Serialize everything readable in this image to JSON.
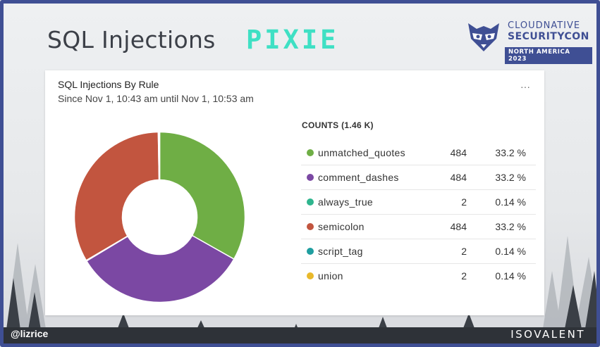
{
  "slide": {
    "title": "SQL Injections",
    "brand": "PIXIE",
    "conference": {
      "line1": "CLOUDNATIVE",
      "line2": "SECURITYCON",
      "line3": "NORTH AMERICA 2023"
    },
    "handle": "@lizrice",
    "footer_brand": "ISOVALENT"
  },
  "panel": {
    "title": "SQL Injections By Rule",
    "subtitle": "Since Nov 1, 10:43 am until Nov 1, 10:53 am",
    "menu_label": "···",
    "counts_title": "COUNTS (1.46 K)"
  },
  "chart_data": {
    "type": "pie",
    "donut": true,
    "title": "SQL Injections By Rule",
    "categories": [
      "unmatched_quotes",
      "comment_dashes",
      "always_true",
      "semicolon",
      "script_tag",
      "union"
    ],
    "values": [
      484,
      484,
      2,
      484,
      2,
      2
    ],
    "percent_labels": [
      "33.2 %",
      "33.2 %",
      "0.14 %",
      "33.2 %",
      "0.14 %",
      "0.14 %"
    ],
    "colors": [
      "#6fae45",
      "#7b48a3",
      "#2fb58e",
      "#c2553f",
      "#1f9ea0",
      "#e9b92b"
    ]
  }
}
